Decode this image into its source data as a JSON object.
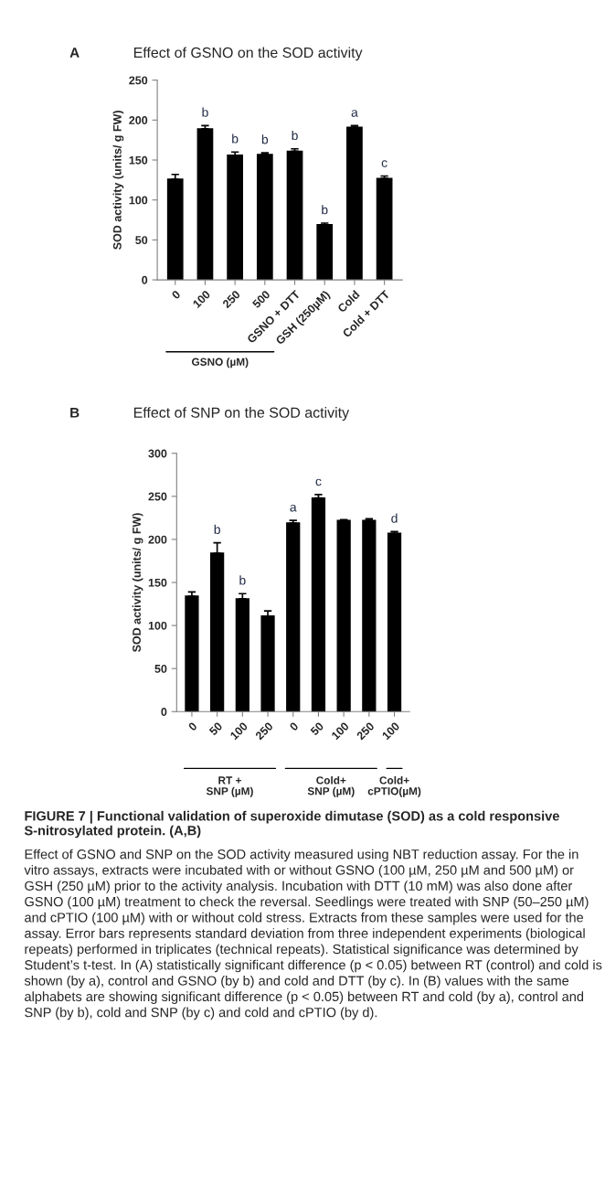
{
  "chart_data": [
    {
      "type": "bar",
      "title": "Effect of GSNO on the SOD activity",
      "ylabel": "SOD activity (units/ g FW)",
      "categories": [
        "0",
        "100",
        "250",
        "500",
        "GSNO + DTT",
        "GSH (250µM)",
        "Cold",
        "Cold + DTT"
      ],
      "values": [
        126,
        189,
        156,
        157,
        161,
        69,
        191,
        127
      ],
      "errors": [
        6,
        4,
        4,
        2,
        3,
        2,
        2,
        3
      ],
      "value_labels": [
        null,
        "b",
        "b",
        "b",
        "b",
        "b",
        "a",
        "c"
      ],
      "color": "#000000",
      "ylim": [
        0,
        250
      ],
      "yticks": [
        0,
        50,
        100,
        150,
        200,
        250
      ],
      "grid": false,
      "annotations": [
        "A",
        "GSNO (µM)"
      ]
    },
    {
      "type": "bar",
      "title": "Effect of SNP on the SOD activity",
      "ylabel": "SOD activity (units/ g FW)",
      "categories": [
        "0",
        "50",
        "100",
        "250",
        "0",
        "50",
        "100",
        "250",
        "100"
      ],
      "values": [
        134,
        184,
        131,
        111,
        219,
        248,
        222,
        222,
        207
      ],
      "errors": [
        5,
        12,
        6,
        6,
        3,
        4,
        1,
        2,
        2
      ],
      "value_labels": [
        null,
        "b",
        "b",
        null,
        "a",
        "c",
        null,
        null,
        "d"
      ],
      "color": "#000000",
      "ylim": [
        0,
        300
      ],
      "yticks": [
        0,
        50,
        100,
        150,
        200,
        250,
        300
      ],
      "grid": false,
      "annotations": [
        "B",
        "RT +\nSNP (µM)",
        "Cold+\nSNP (µM)",
        "Cold+\ncPTIO(µM)",
        "FIGURE 7 | Functional validation of superoxide dimutase (SOD) as a cold responsive S-nitrosylated protein. (A,B)",
        "Effect of GSNO and SNP on the SOD activity measured using NBT reduction assay. For the in vitro assays, extracts were incubated with or without GSNO (100 µM, 250 µM and 500 µM) or GSH (250 µM) prior to the activity analysis. Incubation with DTT (10 mM) was also done after GSNO (100 µM) treatment to check the reversal. Seedlings were treated with SNP (50–250 µM) and cPTIO (100 µM) with or without cold stress. Extracts from these samples were used for the assay. Error bars represents standard deviation from three independent experiments (biological repeats) performed in triplicates (technical repeats). Statistical significance was determined by Student’s t-test. In (A) statistically significant difference (p < 0.05) between RT (control) and cold is shown (by a), control and GSNO (by b) and cold and DTT (by c). In (B) values with the same alphabets are showing significant difference (p < 0.05) between RT and cold (by a), control and SNP (by b), cold and SNP (by c) and cold and cPTIO (by d)."
      ]
    }
  ]
}
